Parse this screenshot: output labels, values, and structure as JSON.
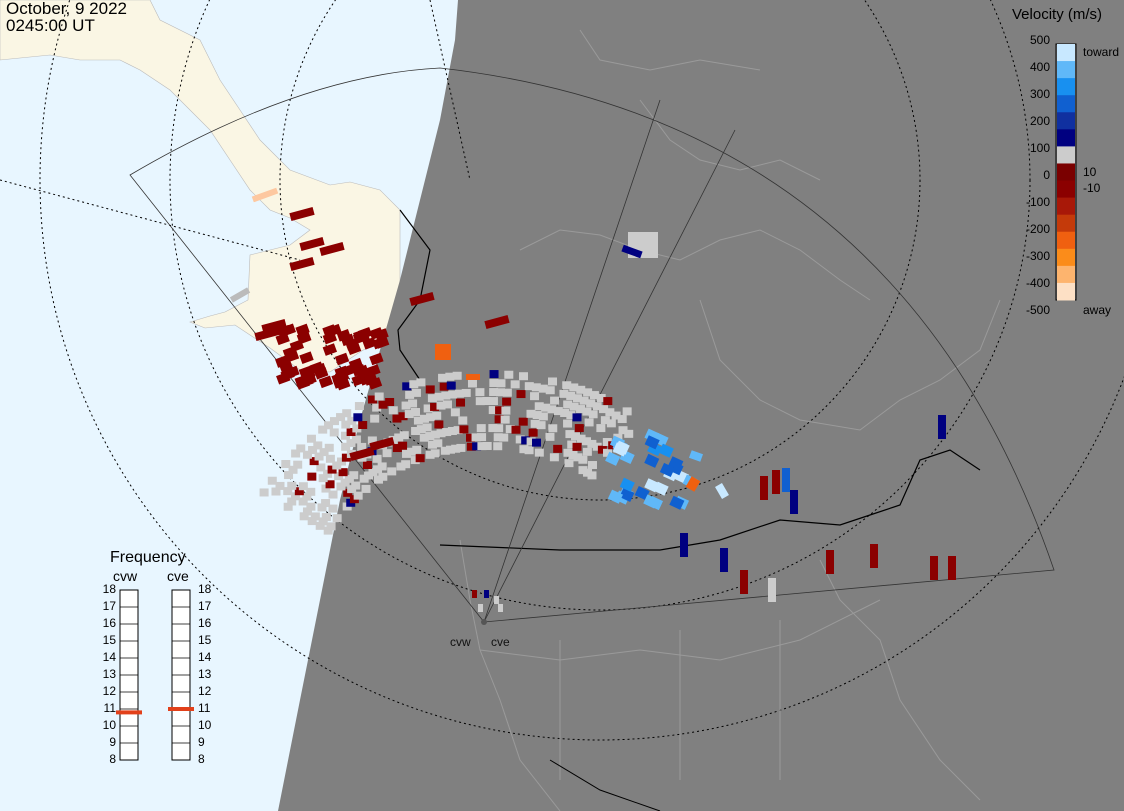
{
  "header": {
    "date": "October, 9 2022",
    "time": "0245:00 UT"
  },
  "colorbar": {
    "title": "Velocity (m/s)",
    "ticks": [
      "500",
      "400",
      "300",
      "200",
      "100",
      "0",
      "-100",
      "-200",
      "-300",
      "-400",
      "-500"
    ],
    "inner_labels": [
      "10",
      "-10"
    ],
    "toward_label": "toward",
    "away_label": "away",
    "colors": [
      "#fde0c5",
      "#fdb46e",
      "#fb8c1a",
      "#f06010",
      "#c43a0a",
      "#a81808",
      "#8b0000",
      "#7a0000",
      "#cccccc",
      "#000080",
      "#1030a0",
      "#1060d0",
      "#1890f0",
      "#60b8f8",
      "#c8e8ff"
    ]
  },
  "frequency": {
    "title": "Frequency",
    "radars": [
      "cvw",
      "cve"
    ],
    "scale": [
      "18",
      "17",
      "16",
      "15",
      "14",
      "13",
      "12",
      "11",
      "10",
      "9",
      "8"
    ],
    "cvw_mhz": 10.8,
    "cve_mhz": 11.0,
    "marker_color": "#e2401a"
  },
  "sites": [
    "cvw",
    "cve"
  ],
  "colors": {
    "ocean": "#e8f6ff",
    "land": "#faf6e4",
    "night": "#808080",
    "gray_scatter": "#cccccc"
  }
}
